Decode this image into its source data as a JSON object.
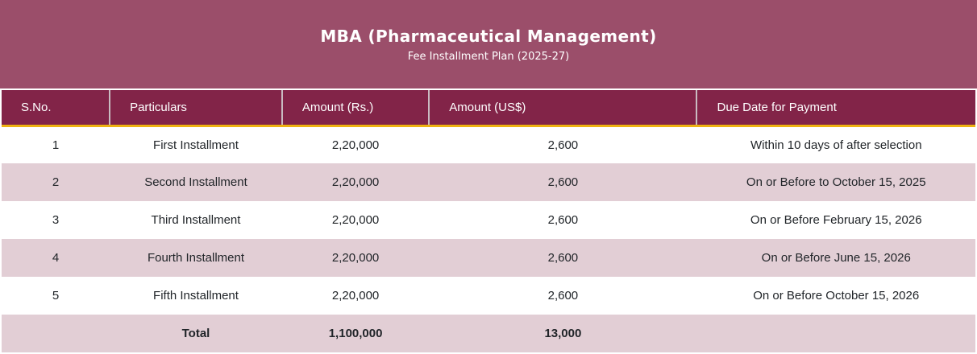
{
  "banner": {
    "title": "MBA (Pharmaceutical Management)",
    "subtitle": "Fee Installment Plan (2025-27)"
  },
  "table": {
    "columns": [
      "S.No.",
      "Particulars",
      "Amount (Rs.)",
      "Amount (US$)",
      "Due Date for Payment"
    ],
    "rows": [
      {
        "sno": "1",
        "particulars": "First Installment",
        "amount_rs": "2,20,000",
        "amount_usd": "2,600",
        "due_date": "Within 10 days of after selection"
      },
      {
        "sno": "2",
        "particulars": "Second Installment",
        "amount_rs": "2,20,000",
        "amount_usd": "2,600",
        "due_date": "On or Before to October 15, 2025"
      },
      {
        "sno": "3",
        "particulars": "Third Installment",
        "amount_rs": "2,20,000",
        "amount_usd": "2,600",
        "due_date": "On or Before February 15, 2026"
      },
      {
        "sno": "4",
        "particulars": "Fourth Installment",
        "amount_rs": "2,20,000",
        "amount_usd": "2,600",
        "due_date": "On or Before June 15, 2026"
      },
      {
        "sno": "5",
        "particulars": "Fifth Installment",
        "amount_rs": "2,20,000",
        "amount_usd": "2,600",
        "due_date": "On or Before October 15, 2026"
      }
    ],
    "total": {
      "sno": "",
      "label": "Total",
      "amount_rs": "1,100,000",
      "amount_usd": "13,000",
      "due_date": ""
    }
  },
  "colors": {
    "banner_bg": "#9b4e6a",
    "head_bg": "#822448",
    "gold": "#eeb211",
    "row_alt": "#e2ced5",
    "body_text": "#212529",
    "head_text": "#ffffff",
    "separator": "#c9bbc1",
    "page_bg": "#ffffff"
  }
}
